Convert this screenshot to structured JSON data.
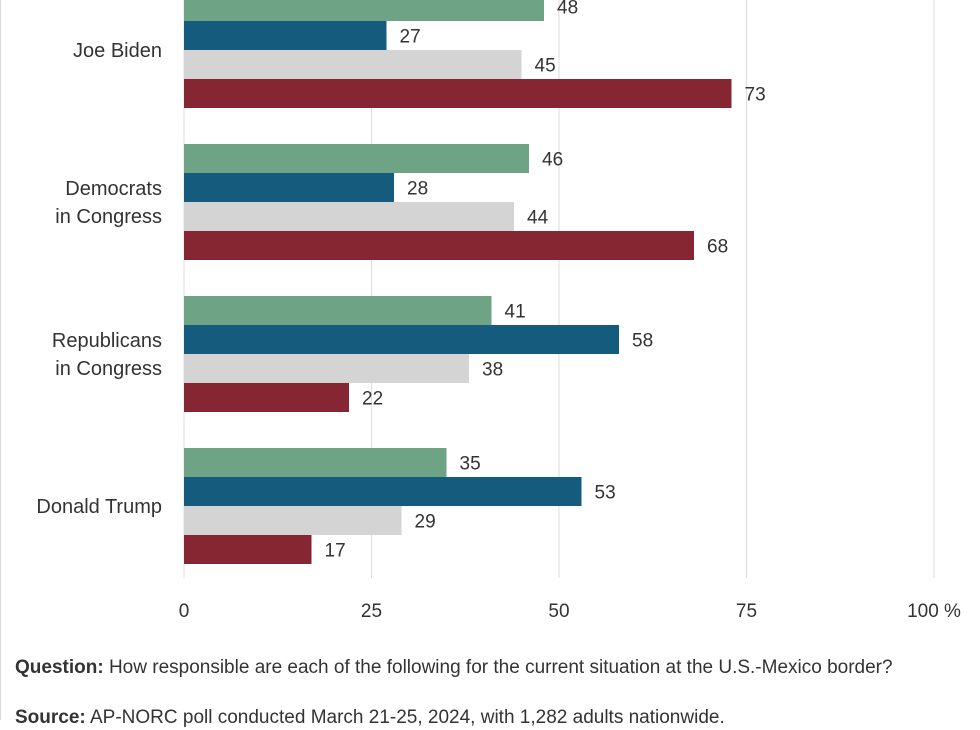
{
  "chart_data": {
    "type": "bar",
    "orientation": "horizontal",
    "categories": [
      {
        "lines": [
          "Joe Biden"
        ]
      },
      {
        "lines": [
          "Democrats",
          "in Congress"
        ]
      },
      {
        "lines": [
          "Republicans",
          "in Congress"
        ]
      },
      {
        "lines": [
          "Donald Trump"
        ]
      }
    ],
    "series": [
      {
        "color": "#6fa386",
        "values": [
          48,
          46,
          41,
          35
        ]
      },
      {
        "color": "#155b7d",
        "values": [
          27,
          28,
          58,
          53
        ]
      },
      {
        "color": "#d4d4d4",
        "values": [
          45,
          44,
          38,
          29
        ]
      },
      {
        "color": "#872633",
        "values": [
          73,
          68,
          22,
          17
        ]
      }
    ],
    "xlim": [
      0,
      100
    ],
    "xticks": [
      {
        "value": 0,
        "label": "0"
      },
      {
        "value": 25,
        "label": "25"
      },
      {
        "value": 50,
        "label": "50"
      },
      {
        "value": 75,
        "label": "75"
      },
      {
        "value": 100,
        "label": "100 %"
      }
    ],
    "grid": true
  },
  "footer": {
    "question_label": "Question:",
    "question_text": " How responsible are each of the following for the current situation at the U.S.-Mexico border?",
    "source_label": "Source:",
    "source_text": " AP-NORC poll conducted March 21-25, 2024, with 1,282 adults nationwide."
  }
}
